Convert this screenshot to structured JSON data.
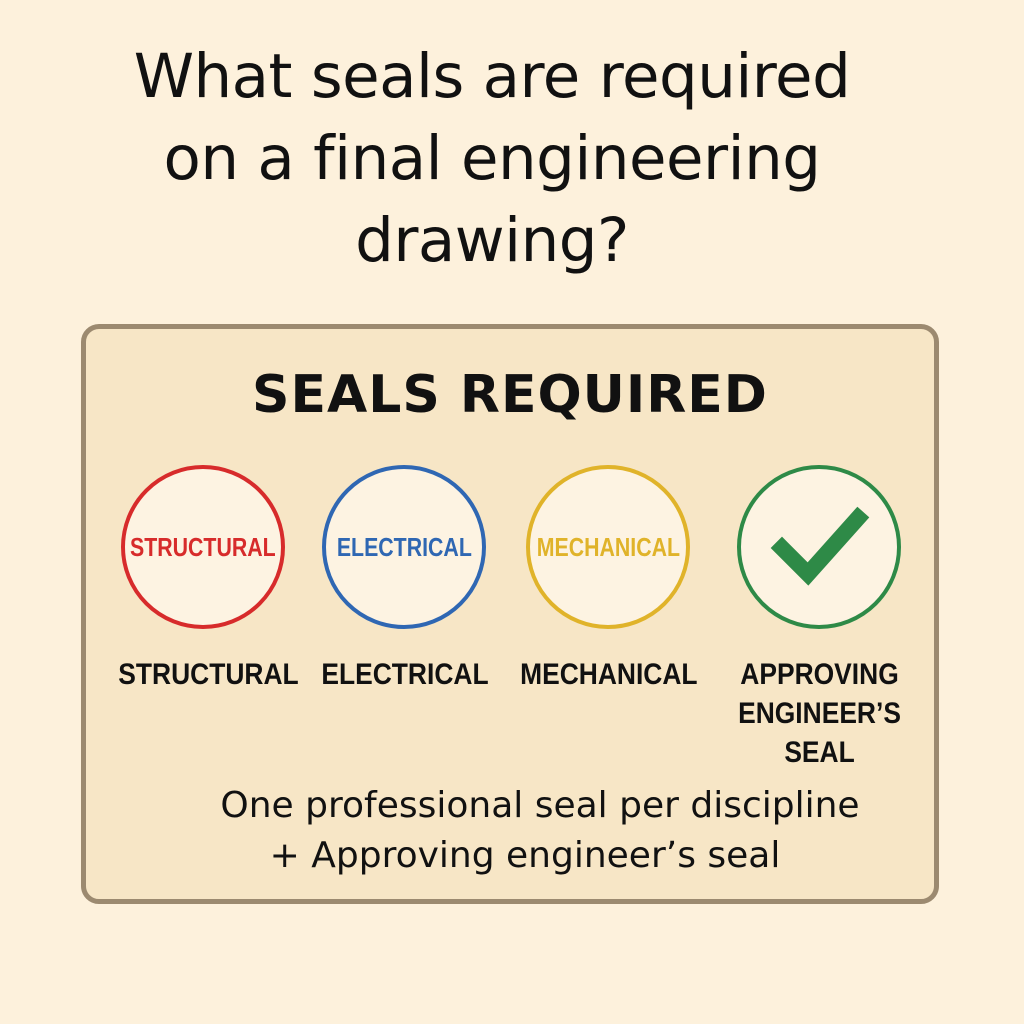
{
  "question": {
    "lines": [
      "What seals are required",
      "on a final engineering",
      "drawing?"
    ]
  },
  "card": {
    "title": "SEALS REQUIRED",
    "seals": [
      {
        "stamp_text": "STRUCTURAL",
        "label_lines": [
          "STRUCTURAL"
        ],
        "color": "#d72b2b"
      },
      {
        "stamp_text": "ELECTRICAL",
        "label_lines": [
          "ELECTRICAL"
        ],
        "color": "#2f67b3"
      },
      {
        "stamp_text": "MECHANICAL",
        "label_lines": [
          "MECHANICAL"
        ],
        "color": "#e0b32a"
      },
      {
        "icon": "checkmark-icon",
        "label_lines": [
          "APPROVING",
          "ENGINEER’S",
          "SEAL"
        ],
        "color": "#2e8a47"
      }
    ],
    "summary_lines": [
      "One professional seal per discipline",
      "+ Approving engineer’s seal"
    ]
  }
}
